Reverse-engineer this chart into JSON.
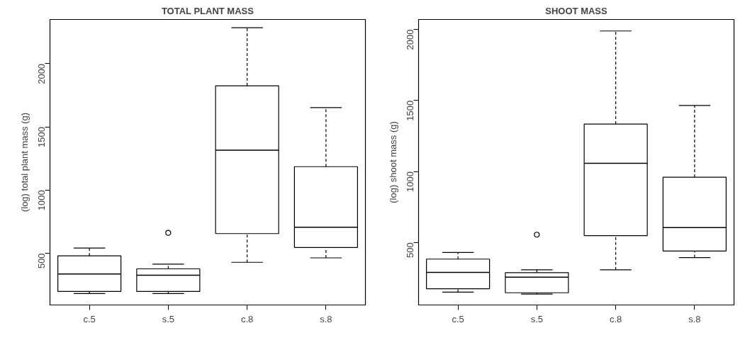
{
  "chart_data": [
    {
      "type": "box",
      "title": "TOTAL PLANT MASS",
      "ylabel": "(log) total plant mass (g)",
      "categories": [
        "c.5",
        "s.5",
        "c.8",
        "s.8"
      ],
      "ylim": [
        90,
        2350
      ],
      "yticks": [
        500,
        1000,
        1500,
        2000
      ],
      "grid": false,
      "boxes": [
        {
          "low": 180,
          "q1": 197,
          "median": 335,
          "q3": 479,
          "high": 541
        },
        {
          "low": 180,
          "q1": 197,
          "median": 325,
          "q3": 376,
          "high": 413,
          "outliers": [
            661
          ]
        },
        {
          "low": 428,
          "q1": 655,
          "median": 1315,
          "q3": 1825,
          "high": 2285
        },
        {
          "low": 463,
          "q1": 545,
          "median": 706,
          "q3": 1185,
          "high": 1652
        }
      ]
    },
    {
      "type": "box",
      "title": "SHOOT MASS",
      "ylabel": "(log) shoot mass (g)",
      "categories": [
        "c.5",
        "s.5",
        "c.8",
        "s.8"
      ],
      "ylim": [
        60,
        2070
      ],
      "yticks": [
        500,
        1000,
        1500,
        2000
      ],
      "grid": false,
      "boxes": [
        {
          "low": 150,
          "q1": 174,
          "median": 290,
          "q3": 383,
          "high": 430
        },
        {
          "low": 137,
          "q1": 146,
          "median": 256,
          "q3": 288,
          "high": 308,
          "outliers": [
            555
          ]
        },
        {
          "low": 308,
          "q1": 548,
          "median": 1058,
          "q3": 1334,
          "high": 1989
        },
        {
          "low": 394,
          "q1": 440,
          "median": 605,
          "q3": 960,
          "high": 1465
        }
      ]
    }
  ]
}
